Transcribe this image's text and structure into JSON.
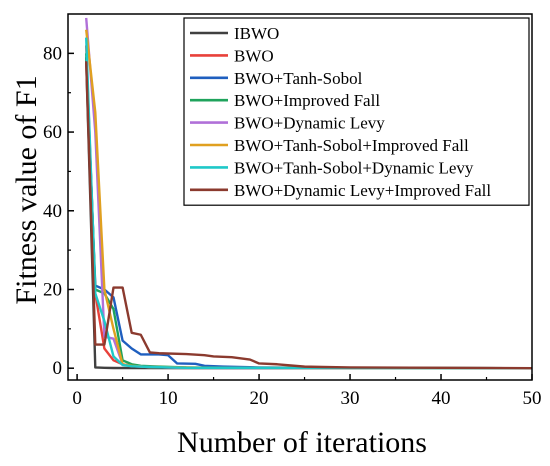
{
  "chart_data": {
    "type": "line",
    "xlabel": "Number of iterations",
    "ylabel": "Fitness value of F1",
    "xlim": [
      -1,
      50
    ],
    "ylim": [
      -3,
      90
    ],
    "xticks": [
      0,
      10,
      20,
      30,
      40,
      50
    ],
    "yticks": [
      0,
      20,
      40,
      60,
      80
    ],
    "xtick_labels": [
      "0",
      "10",
      "20",
      "30",
      "40",
      "50"
    ],
    "ytick_labels": [
      "0",
      "20",
      "40",
      "60",
      "80"
    ],
    "grid": false,
    "legend_position": "top-right",
    "series": [
      {
        "name": "IBWO",
        "color": "#404040",
        "points": [
          [
            1,
            78
          ],
          [
            2,
            0.2
          ],
          [
            3,
            0.1
          ],
          [
            4,
            0.05
          ],
          [
            6,
            0.02
          ],
          [
            50,
            0
          ]
        ]
      },
      {
        "name": "BWO",
        "color": "#e8413a",
        "points": [
          [
            1,
            82
          ],
          [
            2,
            19
          ],
          [
            3,
            5
          ],
          [
            4,
            2
          ],
          [
            5,
            1
          ],
          [
            6,
            0.6
          ],
          [
            8,
            0.3
          ],
          [
            10,
            0.2
          ],
          [
            15,
            0.1
          ],
          [
            25,
            0.05
          ],
          [
            50,
            0
          ]
        ]
      },
      {
        "name": "BWO+Tanh-Sobol",
        "color": "#1f5fbf",
        "points": [
          [
            1,
            79
          ],
          [
            2,
            21
          ],
          [
            3,
            20
          ],
          [
            4,
            18
          ],
          [
            5,
            7
          ],
          [
            6,
            5
          ],
          [
            7,
            3.5
          ],
          [
            9,
            3.5
          ],
          [
            10,
            3.3
          ],
          [
            11,
            1.2
          ],
          [
            13,
            1.1
          ],
          [
            14,
            0.6
          ],
          [
            16,
            0.4
          ],
          [
            20,
            0.2
          ],
          [
            30,
            0.1
          ],
          [
            50,
            0
          ]
        ]
      },
      {
        "name": "BWO+Improved Fall",
        "color": "#1fa35c",
        "points": [
          [
            1,
            80
          ],
          [
            2,
            20
          ],
          [
            3,
            19
          ],
          [
            4,
            15
          ],
          [
            5,
            2
          ],
          [
            6,
            1
          ],
          [
            7,
            0.6
          ],
          [
            9,
            0.4
          ],
          [
            12,
            0.2
          ],
          [
            20,
            0.1
          ],
          [
            50,
            0
          ]
        ]
      },
      {
        "name": "BWO+Dynamic Levy",
        "color": "#b070d8",
        "points": [
          [
            1,
            89
          ],
          [
            2,
            60
          ],
          [
            3,
            8
          ],
          [
            4,
            7.5
          ],
          [
            5,
            1
          ],
          [
            6,
            0.5
          ],
          [
            8,
            0.3
          ],
          [
            12,
            0.1
          ],
          [
            50,
            0
          ]
        ]
      },
      {
        "name": "BWO+Tanh-Sobol+Improved Fall",
        "color": "#e0a020",
        "points": [
          [
            1,
            86
          ],
          [
            2,
            65
          ],
          [
            3,
            20
          ],
          [
            4,
            10
          ],
          [
            5,
            1
          ],
          [
            6,
            0.6
          ],
          [
            8,
            0.3
          ],
          [
            15,
            0.1
          ],
          [
            50,
            0
          ]
        ]
      },
      {
        "name": "BWO+Tanh-Sobol+Dynamic Levy",
        "color": "#1fc8c8",
        "points": [
          [
            1,
            84
          ],
          [
            2,
            19
          ],
          [
            3,
            12
          ],
          [
            4,
            3
          ],
          [
            5,
            0.8
          ],
          [
            6,
            0.5
          ],
          [
            8,
            0.3
          ],
          [
            12,
            0.1
          ],
          [
            50,
            0
          ]
        ]
      },
      {
        "name": "BWO+Dynamic Levy+Improved Fall",
        "color": "#8b3a2e",
        "points": [
          [
            1,
            78
          ],
          [
            2,
            6
          ],
          [
            3,
            6
          ],
          [
            4,
            20.5
          ],
          [
            5,
            20.5
          ],
          [
            6,
            9
          ],
          [
            7,
            8.5
          ],
          [
            8,
            4
          ],
          [
            9,
            3.8
          ],
          [
            12,
            3.6
          ],
          [
            14,
            3.3
          ],
          [
            15,
            3
          ],
          [
            17,
            2.8
          ],
          [
            19,
            2.2
          ],
          [
            20,
            1.2
          ],
          [
            22,
            1
          ],
          [
            25,
            0.4
          ],
          [
            27,
            0.3
          ],
          [
            30,
            0.2
          ],
          [
            40,
            0.1
          ],
          [
            50,
            0
          ]
        ]
      }
    ]
  }
}
